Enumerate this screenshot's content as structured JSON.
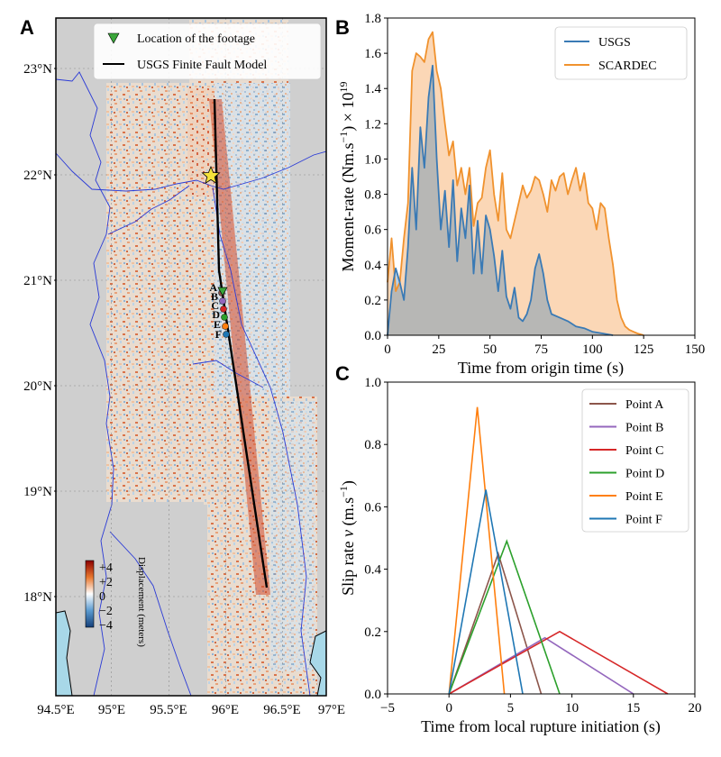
{
  "panels": {
    "a": "A",
    "b": "B",
    "c": "C"
  },
  "map": {
    "legend": {
      "footage": "Location of the footage",
      "fault": "USGS Finite Fault Model"
    },
    "lon_ticks": [
      "94.5°E",
      "95°E",
      "95.5°E",
      "96°E",
      "96.5°E",
      "97°E"
    ],
    "lat_ticks": [
      "23°N",
      "22°N",
      "21°N",
      "20°N",
      "19°N",
      "18°N"
    ],
    "colorbar": {
      "title": "Displacement (meters)",
      "ticks": [
        "+4",
        "+2",
        "0",
        "−2",
        "−4"
      ]
    },
    "points": [
      "A",
      "B",
      "C",
      "D",
      "E",
      "F"
    ],
    "colors": {
      "land": "#cfcfcf",
      "sea": "#a8d8e8",
      "fault": "#000000",
      "marker": "#3aa63a",
      "star": "#f5e23a"
    }
  },
  "chart_data": [
    {
      "type": "area",
      "panel": "B",
      "xlabel": "Time from origin time (s)",
      "ylabel": "Moment-rate (Nm.s⁻¹) × 10¹⁹",
      "ylabel_parts": {
        "main": "Moment-rate (Nm.s",
        "exp1": "−1",
        "mid": ") × 10",
        "exp2": "19"
      },
      "xlim": [
        0,
        150
      ],
      "ylim": [
        0,
        1.8
      ],
      "xticks": [
        "0",
        "25",
        "50",
        "75",
        "100",
        "125",
        "150"
      ],
      "yticks": [
        "0.0",
        "0.2",
        "0.4",
        "0.6",
        "0.8",
        "1.0",
        "1.2",
        "1.4",
        "1.6",
        "1.8"
      ],
      "series": [
        {
          "name": "USGS",
          "color": "#3a7ab5",
          "x": [
            0,
            2,
            4,
            6,
            8,
            10,
            12,
            14,
            16,
            18,
            20,
            22,
            24,
            26,
            28,
            30,
            32,
            34,
            36,
            38,
            40,
            42,
            44,
            46,
            48,
            50,
            52,
            54,
            56,
            58,
            60,
            62,
            64,
            66,
            68,
            70,
            72,
            74,
            76,
            78,
            80,
            84,
            88,
            92,
            96,
            100,
            105,
            110
          ],
          "values": [
            0,
            0.25,
            0.38,
            0.3,
            0.2,
            0.5,
            0.95,
            0.6,
            1.18,
            0.95,
            1.35,
            1.53,
            1.0,
            0.6,
            0.82,
            0.5,
            0.88,
            0.42,
            0.72,
            0.55,
            0.85,
            0.35,
            0.65,
            0.35,
            0.68,
            0.6,
            0.45,
            0.25,
            0.48,
            0.22,
            0.15,
            0.27,
            0.1,
            0.08,
            0.12,
            0.2,
            0.38,
            0.46,
            0.35,
            0.2,
            0.12,
            0.1,
            0.08,
            0.05,
            0.04,
            0.02,
            0.01,
            0
          ]
        },
        {
          "name": "SCARDEC",
          "color": "#f0922e",
          "x": [
            0,
            2,
            4,
            6,
            8,
            10,
            12,
            14,
            16,
            18,
            20,
            22,
            24,
            26,
            28,
            30,
            32,
            34,
            36,
            38,
            40,
            42,
            44,
            46,
            48,
            50,
            52,
            54,
            56,
            58,
            60,
            62,
            64,
            66,
            68,
            70,
            72,
            74,
            76,
            78,
            80,
            82,
            84,
            86,
            88,
            90,
            92,
            94,
            96,
            98,
            100,
            102,
            104,
            106,
            108,
            110,
            112,
            114,
            116,
            118,
            120,
            122,
            125
          ],
          "values": [
            0.3,
            0.55,
            0.25,
            0.3,
            0.55,
            0.75,
            1.5,
            1.6,
            1.58,
            1.55,
            1.68,
            1.72,
            1.5,
            1.4,
            1.2,
            1.02,
            1.1,
            0.85,
            0.95,
            0.8,
            0.95,
            0.62,
            0.75,
            0.78,
            0.95,
            1.05,
            0.8,
            0.65,
            0.92,
            0.6,
            0.55,
            0.65,
            0.75,
            0.85,
            0.78,
            0.82,
            0.9,
            0.88,
            0.8,
            0.7,
            0.88,
            0.82,
            0.9,
            0.92,
            0.8,
            0.88,
            0.95,
            0.82,
            0.92,
            0.75,
            0.72,
            0.6,
            0.75,
            0.72,
            0.55,
            0.4,
            0.2,
            0.1,
            0.05,
            0.03,
            0.02,
            0.01,
            0
          ]
        }
      ]
    },
    {
      "type": "line",
      "panel": "C",
      "xlabel": "Time from local rupture initiation (s)",
      "ylabel": "Slip rate v (m.s⁻¹)",
      "ylabel_parts": {
        "main": "Slip rate ",
        "var": "v",
        "unit": " (m.s",
        "exp": "−1",
        "close": ")"
      },
      "xlim": [
        -5,
        20
      ],
      "ylim": [
        0,
        1.0
      ],
      "xticks": [
        "−5",
        "0",
        "5",
        "10",
        "15",
        "20"
      ],
      "yticks": [
        "0.0",
        "0.2",
        "0.4",
        "0.6",
        "0.8",
        "1.0"
      ],
      "series": [
        {
          "name": "Point A",
          "color": "#8c564b",
          "x": [
            0,
            4,
            7.5
          ],
          "values": [
            0,
            0.45,
            0
          ]
        },
        {
          "name": "Point B",
          "color": "#9467bd",
          "x": [
            0,
            7.8,
            15
          ],
          "values": [
            0,
            0.18,
            0
          ]
        },
        {
          "name": "Point C",
          "color": "#d62728",
          "x": [
            0,
            9,
            17.8
          ],
          "values": [
            0,
            0.2,
            0
          ]
        },
        {
          "name": "Point D",
          "color": "#2ca02c",
          "x": [
            0,
            4.7,
            9
          ],
          "values": [
            0,
            0.49,
            0
          ]
        },
        {
          "name": "Point E",
          "color": "#ff7f0e",
          "x": [
            0,
            2.3,
            4.5
          ],
          "values": [
            0,
            0.92,
            0
          ]
        },
        {
          "name": "Point F",
          "color": "#1f77b4",
          "x": [
            0,
            3,
            6
          ],
          "values": [
            0,
            0.655,
            0
          ]
        }
      ]
    }
  ]
}
